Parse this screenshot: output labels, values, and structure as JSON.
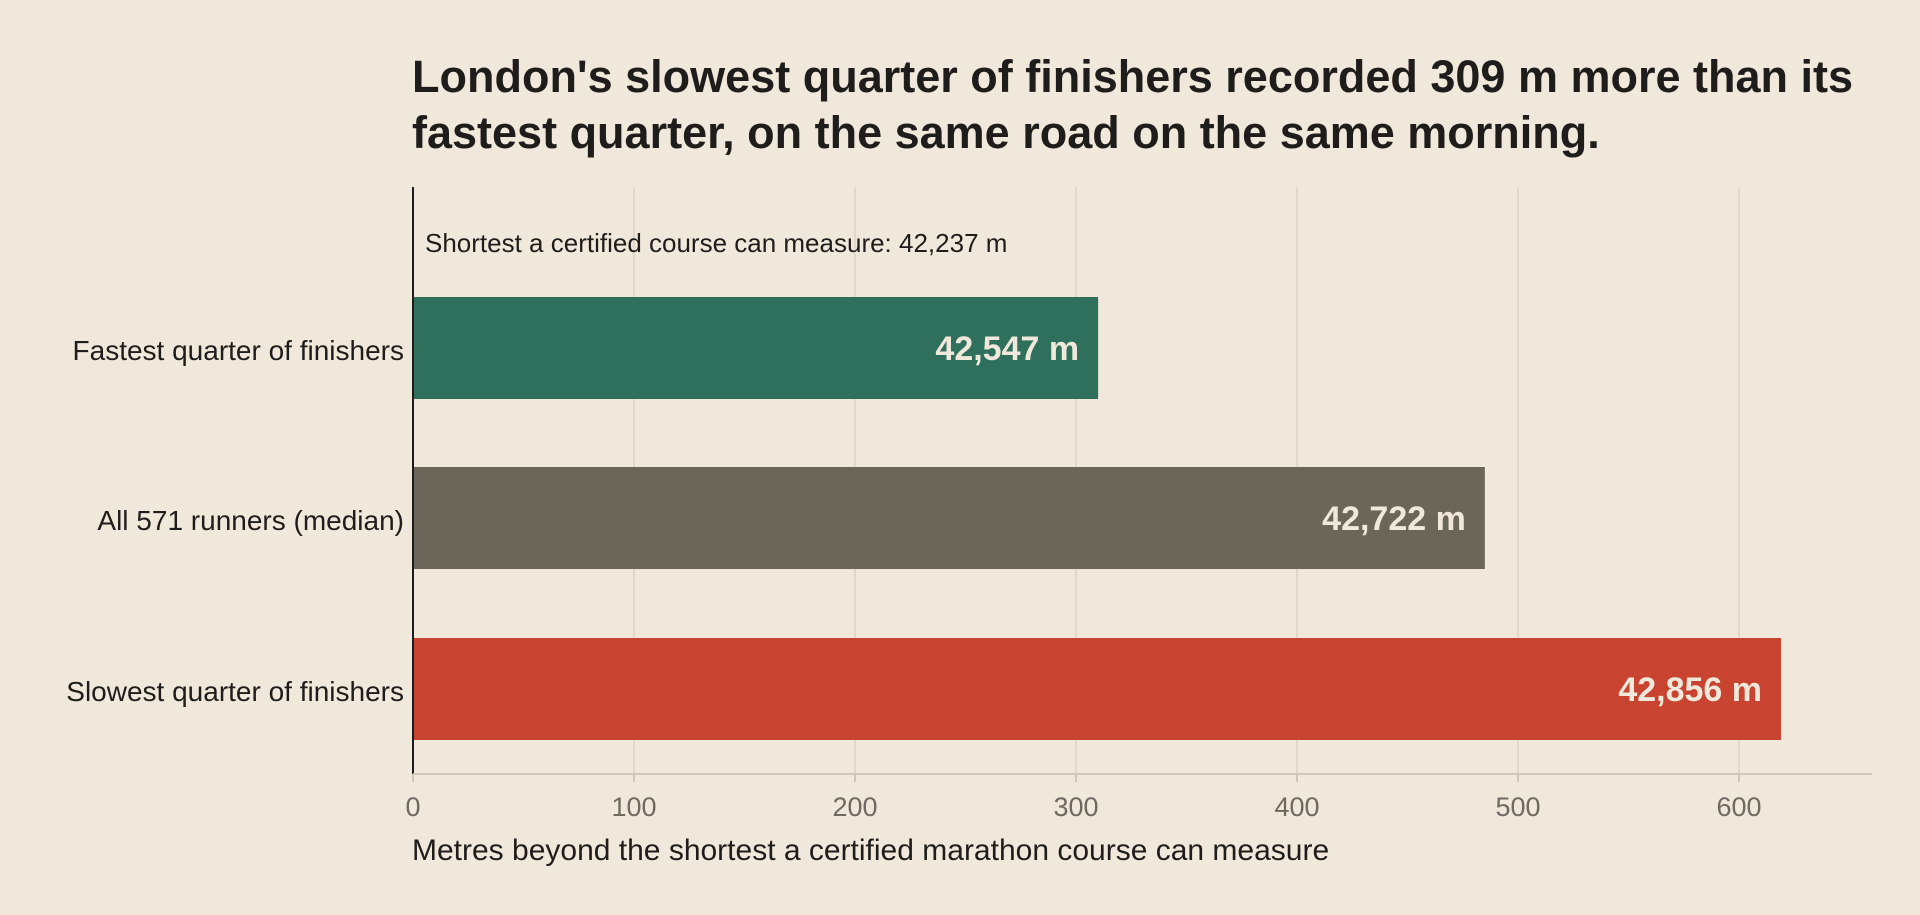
{
  "chart_data": {
    "type": "bar",
    "orientation": "horizontal",
    "title_lines": [
      "London's slowest quarter of finishers recorded 309 m more than its",
      "fastest quarter, on the same road on the same morning."
    ],
    "annotation": "Shortest a certified course can measure: 42,237 m",
    "categories": [
      "Fastest quarter of finishers",
      "All 571 runners (median)",
      "Slowest quarter of finishers"
    ],
    "values": [
      310,
      485,
      619
    ],
    "value_labels": [
      "42,547 m",
      "42,722 m",
      "42,856 m"
    ],
    "colors": [
      "#2f705d",
      "#6a665a",
      "#c94331"
    ],
    "xlabel": "Metres beyond the shortest a certified marathon course can measure",
    "xlim": [
      0,
      660
    ],
    "xticks": [
      0,
      100,
      200,
      300,
      400,
      500,
      600
    ],
    "grid": true
  }
}
